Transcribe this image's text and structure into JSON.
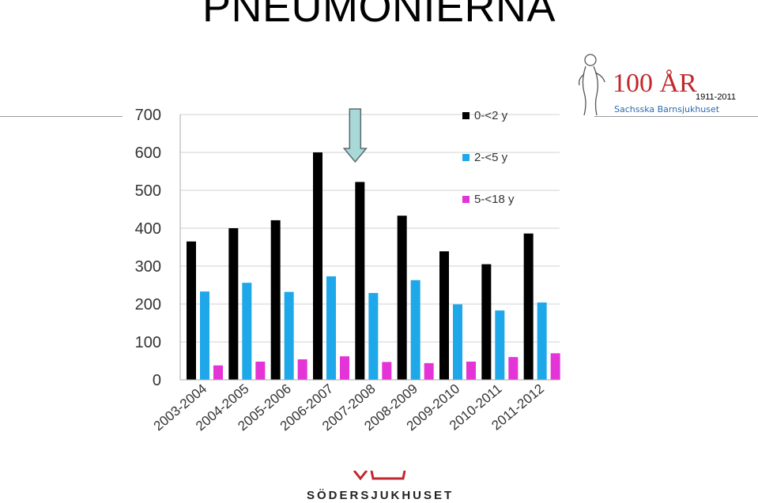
{
  "slide": {
    "title": "PNEUMONIERNA"
  },
  "logo": {
    "main": "100 ÅR",
    "years": "1911-2011",
    "subtitle": "Sachsska Barnsjukhuset"
  },
  "footer": {
    "text": "SÖDERSJUKHUSET"
  },
  "colors": {
    "series_0": "#000000",
    "series_1": "#1ea8ea",
    "series_2": "#e433d6",
    "arrow_fill": "#a9d8d8",
    "arrow_stroke": "#5a6a6a",
    "grid": "#d0d0d0"
  },
  "chart_data": {
    "type": "bar",
    "title": "",
    "xlabel": "",
    "ylabel": "",
    "ylim": [
      0,
      700
    ],
    "yticks": [
      0,
      100,
      200,
      300,
      400,
      500,
      600,
      700
    ],
    "grid": true,
    "legend_position": "top-right",
    "categories": [
      "2003-2004",
      "2004-2005",
      "2005-2006",
      "2006-2007",
      "2007-2008",
      "2008-2009",
      "2009-2010",
      "2010-2011",
      "2011-2012"
    ],
    "series": [
      {
        "name": "0-<2 y",
        "values": [
          365,
          400,
          421,
          600,
          522,
          433,
          339,
          305,
          386
        ]
      },
      {
        "name": "2-<5 y",
        "values": [
          233,
          256,
          232,
          273,
          229,
          263,
          199,
          183,
          204
        ]
      },
      {
        "name": "5-<18 y",
        "values": [
          38,
          48,
          54,
          62,
          47,
          44,
          48,
          60,
          70
        ]
      }
    ],
    "annotation": {
      "type": "arrow",
      "category": "2007-2008"
    }
  }
}
